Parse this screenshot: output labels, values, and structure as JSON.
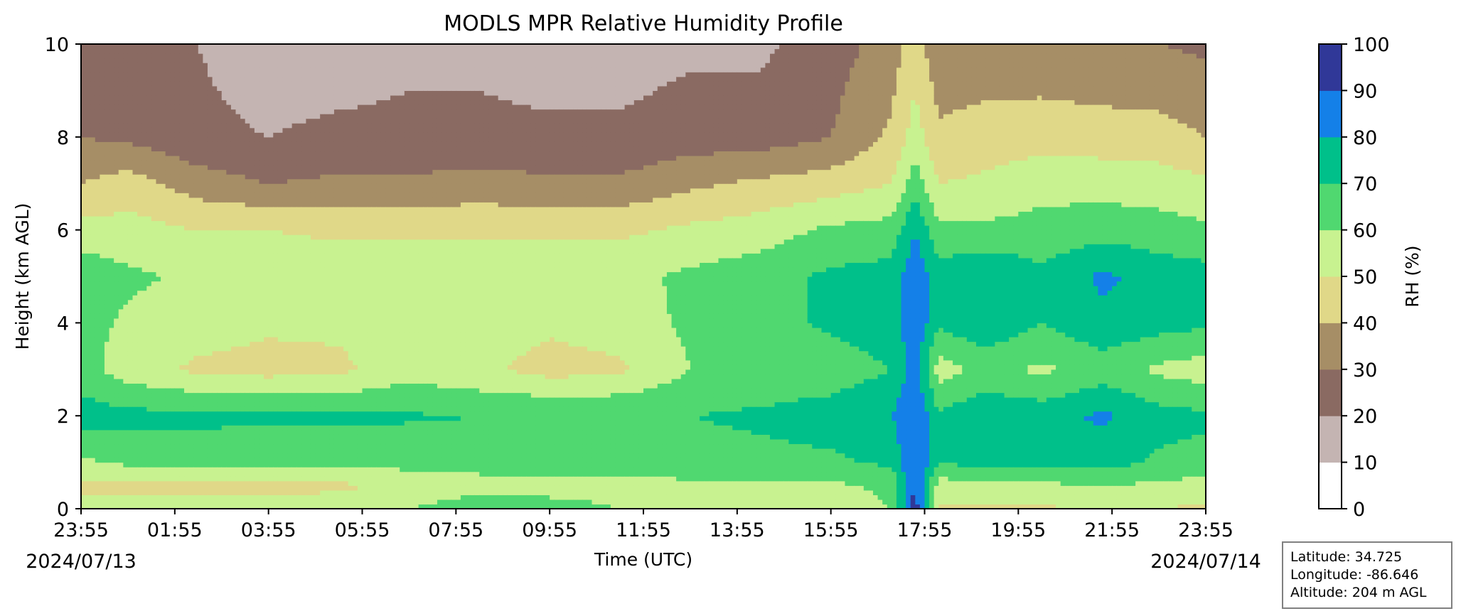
{
  "chart_data": {
    "type": "heatmap",
    "title": "MODLS MPR Relative Humidity Profile",
    "xlabel": "Time (UTC)",
    "ylabel": "Height (km AGL)",
    "x_ticks": [
      "23:55",
      "01:55",
      "03:55",
      "05:55",
      "07:55",
      "09:55",
      "11:55",
      "13:55",
      "15:55",
      "17:55",
      "19:55",
      "21:55",
      "23:55"
    ],
    "x_range_hours": [
      0,
      24
    ],
    "start_date": "2024/07/13",
    "end_date": "2024/07/14",
    "y_ticks": [
      0,
      2,
      4,
      6,
      8,
      10
    ],
    "ylim": [
      0,
      10
    ],
    "colorbar": {
      "label": "RH (%)",
      "levels": [
        0,
        10,
        20,
        30,
        40,
        50,
        60,
        70,
        80,
        90,
        100
      ],
      "colors": [
        "#ffffff",
        "#c4b4b2",
        "#8a6a62",
        "#a68e66",
        "#e0d888",
        "#c8f290",
        "#50d870",
        "#00c08a",
        "#1480e8",
        "#303898"
      ]
    },
    "rh_profiles": [
      {
        "time_h": 0.0,
        "heights_km": [
          0,
          0.5,
          1,
          2,
          3,
          4,
          5,
          6,
          6.5,
          8,
          10
        ],
        "rh": [
          55,
          48,
          58,
          75,
          64,
          64,
          66,
          55,
          45,
          30,
          25
        ]
      },
      {
        "time_h": 1.0,
        "heights_km": [
          0,
          0.5,
          1,
          2,
          3,
          4,
          5,
          6,
          7,
          8,
          10
        ],
        "rh": [
          55,
          45,
          62,
          73,
          55,
          58,
          62,
          54,
          45,
          28,
          25
        ]
      },
      {
        "time_h": 2.5,
        "heights_km": [
          0,
          0.5,
          1,
          2,
          3,
          4,
          5,
          6,
          7,
          8,
          10
        ],
        "rh": [
          55,
          45,
          62,
          73,
          48,
          55,
          58,
          50,
          35,
          22,
          20
        ]
      },
      {
        "time_h": 4.0,
        "heights_km": [
          0,
          0.5,
          1,
          2,
          3,
          4,
          5,
          6,
          7,
          8,
          10
        ],
        "rh": [
          56,
          45,
          62,
          72,
          46,
          52,
          58,
          50,
          30,
          20,
          15
        ]
      },
      {
        "time_h": 5.5,
        "heights_km": [
          0,
          0.5,
          1,
          2,
          3,
          4,
          5,
          6,
          7,
          8,
          10
        ],
        "rh": [
          57,
          48,
          62,
          72,
          48,
          52,
          56,
          48,
          32,
          22,
          15
        ]
      },
      {
        "time_h": 7.0,
        "heights_km": [
          0,
          0.5,
          1,
          2,
          3,
          4,
          5,
          6,
          7,
          8,
          10
        ],
        "rh": [
          60,
          52,
          64,
          71,
          56,
          54,
          56,
          48,
          32,
          22,
          18
        ]
      },
      {
        "time_h": 8.5,
        "heights_km": [
          0,
          0.5,
          1,
          2,
          3,
          4,
          5,
          6,
          7,
          8,
          10
        ],
        "rh": [
          68,
          55,
          65,
          70,
          52,
          56,
          56,
          48,
          34,
          22,
          18
        ]
      },
      {
        "time_h": 10.0,
        "heights_km": [
          0,
          0.5,
          1,
          2,
          3,
          4,
          5,
          6,
          7,
          8,
          10
        ],
        "rh": [
          65,
          55,
          66,
          70,
          46,
          52,
          56,
          48,
          32,
          22,
          15
        ]
      },
      {
        "time_h": 11.5,
        "heights_km": [
          0,
          0.5,
          1,
          2,
          3,
          4,
          5,
          6,
          7,
          8,
          10
        ],
        "rh": [
          60,
          55,
          65,
          70,
          48,
          55,
          57,
          48,
          32,
          22,
          15
        ]
      },
      {
        "time_h": 13.0,
        "heights_km": [
          0,
          0.5,
          1,
          2,
          3,
          4,
          5,
          6,
          7,
          8,
          10
        ],
        "rh": [
          56,
          58,
          66,
          70,
          60,
          62,
          62,
          52,
          38,
          25,
          18
        ]
      },
      {
        "time_h": 14.5,
        "heights_km": [
          0,
          0.5,
          1,
          2,
          3,
          4,
          5,
          6,
          7,
          8,
          10
        ],
        "rh": [
          55,
          58,
          67,
          72,
          62,
          66,
          66,
          55,
          42,
          25,
          18
        ]
      },
      {
        "time_h": 16.0,
        "heights_km": [
          0,
          0.5,
          1,
          2,
          3,
          4,
          5,
          6,
          7,
          8,
          10
        ],
        "rh": [
          55,
          58,
          68,
          75,
          64,
          72,
          72,
          62,
          45,
          30,
          25
        ]
      },
      {
        "time_h": 17.3,
        "heights_km": [
          0,
          0.5,
          1,
          2,
          3,
          4,
          5,
          6,
          7,
          8,
          10
        ],
        "rh": [
          60,
          62,
          72,
          80,
          70,
          76,
          74,
          64,
          50,
          42,
          35
        ]
      },
      {
        "time_h": 17.8,
        "heights_km": [
          0,
          0.5,
          1,
          2,
          3,
          4,
          5,
          6,
          7,
          8,
          10
        ],
        "rh": [
          95,
          92,
          92,
          90,
          85,
          88,
          88,
          80,
          65,
          55,
          45
        ]
      },
      {
        "time_h": 18.3,
        "heights_km": [
          0,
          0.5,
          1,
          2,
          3,
          4,
          5,
          6,
          7,
          8,
          10
        ],
        "rh": [
          48,
          55,
          70,
          72,
          55,
          72,
          75,
          62,
          50,
          42,
          32
        ]
      },
      {
        "time_h": 19.3,
        "heights_km": [
          0,
          0.5,
          1,
          2,
          3,
          4,
          5,
          6,
          7,
          8,
          10
        ],
        "rh": [
          48,
          58,
          74,
          78,
          63,
          78,
          80,
          62,
          52,
          45,
          32
        ]
      },
      {
        "time_h": 20.5,
        "heights_km": [
          0,
          0.5,
          1,
          2,
          3,
          4,
          5,
          6,
          7,
          8,
          10
        ],
        "rh": [
          47,
          58,
          72,
          76,
          58,
          70,
          72,
          64,
          56,
          46,
          32
        ]
      },
      {
        "time_h": 21.8,
        "heights_km": [
          0,
          0.5,
          1,
          2,
          3,
          4,
          5,
          6,
          7,
          8,
          10
        ],
        "rh": [
          55,
          60,
          74,
          82,
          64,
          78,
          82,
          66,
          56,
          45,
          30
        ]
      },
      {
        "time_h": 23.0,
        "heights_km": [
          0,
          0.5,
          1,
          2,
          3,
          4,
          5,
          6,
          7,
          8,
          10
        ],
        "rh": [
          50,
          58,
          68,
          74,
          58,
          74,
          76,
          64,
          55,
          44,
          30
        ]
      },
      {
        "time_h": 24.0,
        "heights_km": [
          0,
          0.5,
          1,
          2,
          3,
          4,
          5,
          6,
          7,
          8,
          10
        ],
        "rh": [
          48,
          56,
          66,
          72,
          55,
          72,
          74,
          62,
          52,
          40,
          28
        ]
      }
    ]
  },
  "station_info": {
    "latitude": "Latitude: 34.725",
    "longitude": "Longitude: -86.646",
    "altitude": "Altitude: 204 m AGL"
  }
}
